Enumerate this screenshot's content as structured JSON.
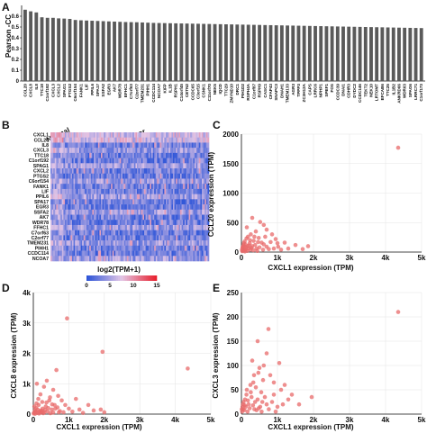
{
  "panels": {
    "A": "A",
    "B": "B",
    "C": "C",
    "D": "D",
    "E": "E"
  },
  "chart_data": [
    {
      "id": "A",
      "type": "bar",
      "ylabel": "Pearson -CC",
      "ylim": [
        0,
        0.7
      ],
      "yticks": [
        0,
        0.1,
        0.2,
        0.3,
        0.4,
        0.5,
        0.6
      ],
      "bar_color": "#5a5a5a",
      "categories": [
        "CCL20",
        "CXCL8",
        "IL8",
        "TTC18",
        "C1orf192",
        "CXCL3",
        "CXCL2",
        "SPAG1",
        "PTGS2",
        "C6orf154",
        "FANK1",
        "LIF",
        "PPIL6",
        "SPA17",
        "SSFA2",
        "EGR3",
        "AK7",
        "WDR78",
        "EFHC1",
        "C7orf63",
        "C2orf77",
        "TMEM231",
        "PIHH1",
        "CCDC114",
        "NCOA7",
        "KIFP",
        "IL1B",
        "RSPH1",
        "C14orf45",
        "CETN2",
        "CCDC65",
        "C3orf15",
        "CSNK1",
        "C11orf70",
        "NEK5",
        "IQCD",
        "TTC29",
        "ZMYND10",
        "DRC1",
        "PIH1D2",
        "RSPH4A",
        "C1orf87",
        "RSPH9",
        "CASC1",
        "CFAP43",
        "SNAPC3",
        "DNAH1",
        "TMEM133",
        "AGR3",
        "TPPP3",
        "ZC3H12A",
        "CAPS",
        "LRRC6",
        "NPHP1",
        "SPEF1",
        "FOS",
        "CCDC39",
        "DNAI1",
        "CDHR3",
        "DYDC2",
        "CCDC146",
        "TEKT2",
        "NEK10",
        "LRTOMT",
        "EFCAB6",
        "TTC25",
        "IL1B2",
        "ANKRD66",
        "WDR63",
        "SPAG6",
        "LRRC71",
        "C1orf173"
      ],
      "values": [
        0.66,
        0.645,
        0.635,
        0.59,
        0.585,
        0.585,
        0.58,
        0.578,
        0.575,
        0.565,
        0.562,
        0.56,
        0.558,
        0.556,
        0.554,
        0.552,
        0.55,
        0.548,
        0.546,
        0.545,
        0.544,
        0.542,
        0.54,
        0.538,
        0.537,
        0.536,
        0.535,
        0.534,
        0.533,
        0.532,
        0.531,
        0.53,
        0.529,
        0.528,
        0.527,
        0.526,
        0.525,
        0.524,
        0.523,
        0.522,
        0.521,
        0.52,
        0.519,
        0.518,
        0.517,
        0.516,
        0.515,
        0.514,
        0.513,
        0.512,
        0.511,
        0.51,
        0.509,
        0.508,
        0.507,
        0.506,
        0.505,
        0.504,
        0.503,
        0.502,
        0.501,
        0.5,
        0.499,
        0.498,
        0.497,
        0.496,
        0.495,
        0.494,
        0.493,
        0.492,
        0.491,
        0.49
      ]
    },
    {
      "id": "B",
      "type": "heatmap",
      "group_labels": [
        "Normal",
        "Tumor"
      ],
      "normal_fraction": 0.08,
      "rows": [
        "CXCL1",
        "CCL20",
        "IL8",
        "CXCL3",
        "TTC18",
        "C1orf192",
        "SPAG1",
        "CXCL2",
        "PTGS2",
        "C6orf154",
        "FANK1",
        "LIF",
        "PPIL6",
        "SPA17",
        "EGR3",
        "SSFA2",
        "AK7",
        "WDR78",
        "FFHC1",
        "C7orf63",
        "C2orf77",
        "TMEM231",
        "PIHH1",
        "CCDC114",
        "NCOA7"
      ],
      "legend_title": "log2(TPM+1)",
      "legend_ticks": [
        0,
        5,
        10,
        15
      ],
      "colors": {
        "low": "#2f56d8",
        "mid": "#e3c6e6",
        "high": "#e8202e"
      }
    },
    {
      "id": "C",
      "type": "scatter",
      "xlabel": "CXCL1 expression (TPM)",
      "ylabel": "CCL20 expression (TPM)",
      "xlim": [
        0,
        5000
      ],
      "ylim": [
        0,
        2000
      ],
      "xticks": [
        0,
        1000,
        2000,
        3000,
        4000,
        5000
      ],
      "xtick_labels": [
        "0",
        "1k",
        "2k",
        "3k",
        "4k",
        "5k"
      ],
      "yticks": [
        0,
        500,
        1000,
        1500,
        2000
      ],
      "ytick_labels": [
        "0",
        "500",
        "1000",
        "1500",
        "2000"
      ],
      "point_color": "#e86a6a",
      "points": [
        [
          4350,
          1770
        ],
        [
          620,
          460
        ],
        [
          700,
          380
        ],
        [
          300,
          580
        ],
        [
          520,
          510
        ],
        [
          150,
          420
        ],
        [
          950,
          220
        ],
        [
          1200,
          160
        ],
        [
          260,
          300
        ],
        [
          400,
          350
        ],
        [
          180,
          260
        ],
        [
          810,
          170
        ],
        [
          620,
          130
        ],
        [
          1020,
          90
        ],
        [
          1500,
          120
        ],
        [
          1850,
          100
        ],
        [
          480,
          240
        ],
        [
          340,
          190
        ],
        [
          230,
          150
        ],
        [
          140,
          230
        ],
        [
          560,
          160
        ],
        [
          700,
          90
        ],
        [
          90,
          180
        ],
        [
          60,
          120
        ],
        [
          30,
          70
        ],
        [
          120,
          80
        ],
        [
          200,
          60
        ],
        [
          70,
          40
        ],
        [
          40,
          25
        ],
        [
          100,
          30
        ],
        [
          160,
          20
        ],
        [
          250,
          40
        ],
        [
          300,
          100
        ],
        [
          420,
          60
        ],
        [
          500,
          80
        ],
        [
          380,
          120
        ],
        [
          20,
          15
        ],
        [
          50,
          55
        ],
        [
          80,
          95
        ],
        [
          110,
          130
        ],
        [
          210,
          110
        ],
        [
          280,
          70
        ],
        [
          330,
          30
        ],
        [
          440,
          20
        ],
        [
          600,
          40
        ],
        [
          760,
          50
        ],
        [
          900,
          60
        ],
        [
          1100,
          40
        ],
        [
          15,
          40
        ],
        [
          35,
          90
        ],
        [
          65,
          150
        ],
        [
          95,
          10
        ],
        [
          130,
          50
        ],
        [
          175,
          100
        ],
        [
          240,
          200
        ],
        [
          360,
          260
        ],
        [
          460,
          170
        ],
        [
          660,
          260
        ],
        [
          850,
          300
        ],
        [
          1300,
          60
        ],
        [
          1700,
          50
        ],
        [
          1000,
          150
        ]
      ]
    },
    {
      "id": "D",
      "type": "scatter",
      "xlabel": "CXCL1 expression (TPM)",
      "ylabel": "CXCL8 expression (TPM)",
      "xlim": [
        0,
        5000
      ],
      "ylim": [
        0,
        4000
      ],
      "xticks": [
        0,
        1000,
        2000,
        3000,
        4000,
        5000
      ],
      "xtick_labels": [
        "0",
        "1k",
        "2k",
        "3k",
        "4k",
        "5k"
      ],
      "yticks": [
        0,
        1000,
        2000,
        3000,
        4000
      ],
      "ytick_labels": [
        "0",
        "1k",
        "2k",
        "3k",
        "4k"
      ],
      "point_color": "#e86a6a",
      "points": [
        [
          950,
          3150
        ],
        [
          1950,
          2050
        ],
        [
          4350,
          1500
        ],
        [
          650,
          1450
        ],
        [
          380,
          1100
        ],
        [
          300,
          900
        ],
        [
          100,
          1000
        ],
        [
          560,
          800
        ],
        [
          700,
          600
        ],
        [
          1200,
          500
        ],
        [
          800,
          450
        ],
        [
          200,
          650
        ],
        [
          470,
          550
        ],
        [
          1550,
          300
        ],
        [
          1900,
          150
        ],
        [
          900,
          300
        ],
        [
          250,
          400
        ],
        [
          150,
          300
        ],
        [
          350,
          250
        ],
        [
          600,
          300
        ],
        [
          80,
          200
        ],
        [
          40,
          120
        ],
        [
          120,
          150
        ],
        [
          60,
          60
        ],
        [
          20,
          40
        ],
        [
          180,
          100
        ],
        [
          260,
          180
        ],
        [
          420,
          200
        ],
        [
          520,
          150
        ],
        [
          680,
          220
        ],
        [
          1000,
          180
        ],
        [
          1100,
          80
        ],
        [
          1300,
          150
        ],
        [
          30,
          250
        ],
        [
          90,
          350
        ],
        [
          140,
          500
        ],
        [
          220,
          120
        ],
        [
          310,
          60
        ],
        [
          400,
          90
        ],
        [
          480,
          30
        ],
        [
          560,
          50
        ],
        [
          750,
          100
        ],
        [
          850,
          60
        ],
        [
          10,
          20
        ],
        [
          50,
          10
        ],
        [
          70,
          90
        ],
        [
          110,
          40
        ],
        [
          160,
          20
        ],
        [
          200,
          50
        ],
        [
          240,
          80
        ],
        [
          280,
          30
        ],
        [
          330,
          140
        ],
        [
          370,
          380
        ],
        [
          450,
          450
        ],
        [
          530,
          320
        ],
        [
          620,
          180
        ],
        [
          720,
          60
        ],
        [
          2000,
          60
        ],
        [
          1400,
          40
        ],
        [
          1700,
          120
        ]
      ]
    },
    {
      "id": "E",
      "type": "scatter",
      "xlabel": "CXCL1 expression (TPM)",
      "ylabel": "CXCL3 expression (TPM)",
      "xlim": [
        0,
        5000
      ],
      "ylim": [
        0,
        250
      ],
      "xticks": [
        0,
        1000,
        2000,
        3000,
        4000,
        5000
      ],
      "xtick_labels": [
        "0",
        "1k",
        "2k",
        "3k",
        "4k",
        "5k"
      ],
      "yticks": [
        0,
        50,
        100,
        150,
        200,
        250
      ],
      "ytick_labels": [
        "0",
        "50",
        "100",
        "150",
        "200",
        "250"
      ],
      "point_color": "#e86a6a",
      "points": [
        [
          4350,
          210
        ],
        [
          750,
          175
        ],
        [
          450,
          150
        ],
        [
          700,
          125
        ],
        [
          300,
          110
        ],
        [
          1050,
          105
        ],
        [
          500,
          95
        ],
        [
          800,
          80
        ],
        [
          600,
          70
        ],
        [
          1200,
          60
        ],
        [
          1100,
          50
        ],
        [
          1950,
          35
        ],
        [
          1400,
          40
        ],
        [
          350,
          80
        ],
        [
          250,
          60
        ],
        [
          150,
          50
        ],
        [
          400,
          55
        ],
        [
          550,
          45
        ],
        [
          650,
          35
        ],
        [
          900,
          40
        ],
        [
          100,
          30
        ],
        [
          60,
          25
        ],
        [
          30,
          15
        ],
        [
          200,
          20
        ],
        [
          280,
          35
        ],
        [
          380,
          25
        ],
        [
          450,
          30
        ],
        [
          520,
          15
        ],
        [
          700,
          20
        ],
        [
          850,
          25
        ],
        [
          1000,
          15
        ],
        [
          1300,
          30
        ],
        [
          1600,
          20
        ],
        [
          20,
          5
        ],
        [
          50,
          10
        ],
        [
          80,
          8
        ],
        [
          120,
          15
        ],
        [
          170,
          5
        ],
        [
          230,
          12
        ],
        [
          320,
          18
        ],
        [
          420,
          8
        ],
        [
          480,
          12
        ],
        [
          580,
          25
        ],
        [
          760,
          10
        ],
        [
          950,
          5
        ],
        [
          1150,
          20
        ],
        [
          140,
          40
        ],
        [
          260,
          45
        ],
        [
          330,
          65
        ],
        [
          470,
          85
        ],
        [
          620,
          100
        ],
        [
          900,
          65
        ],
        [
          10,
          10
        ],
        [
          40,
          20
        ],
        [
          90,
          18
        ],
        [
          180,
          28
        ],
        [
          360,
          10
        ],
        [
          560,
          5
        ]
      ]
    }
  ]
}
